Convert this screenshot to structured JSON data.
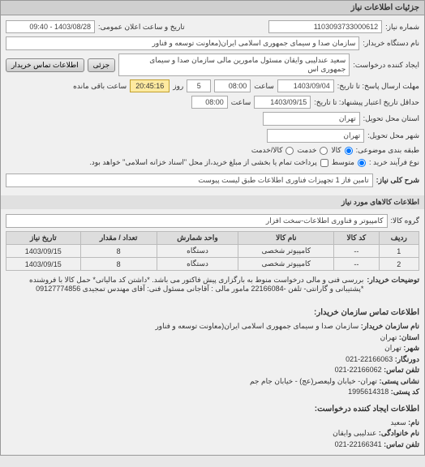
{
  "header": "جزئیات اطلاعات نیاز",
  "fields": {
    "requestNo_label": "شماره نیاز:",
    "requestNo": "1103093733000612",
    "announceDT_label": "تاریخ و ساعت اعلان عمومی:",
    "announceDT": "1403/08/28 - 09:40",
    "buyerDevice_label": "نام دستگاه خریدار:",
    "buyerDevice": "سازمان صدا و سیمای جمهوری اسلامی ایران(معاونت توسعه و فناور",
    "creator_label": "ایجاد کننده درخواست:",
    "creator": "سعید عندلیبی وایقان مسئول مامورین مالی  سازمان صدا و سیمای جمهوری اس",
    "partial_btn": "جزئی",
    "contactBuyer_btn": "اطلاعات تماس خریدار",
    "responseDeadline_label": "مهلت ارسال پاسخ: تا تاریخ:",
    "responseDate": "1403/09/04",
    "responseTime": "08:00",
    "countdownLabel": "روز",
    "countdownDays": "5",
    "countdownTime": "20:45:16",
    "remaining": "ساعت باقی مانده",
    "validityDeadline_label": "حداقل تاریخ اعتبار پیشنهاد: تا تاریخ:",
    "validityDate": "1403/09/15",
    "validityTime": "08:00",
    "province_label": "استان محل تحویل:",
    "province": "تهران",
    "city_label": "شهر محل تحویل:",
    "city": "تهران",
    "packaging_label": "طبقه بندی موضوعی:",
    "pkg_opt1": "کالا",
    "pkg_opt2": "خدمت",
    "pkg_opt3": "کالا/خدمت",
    "purchaseType_label": "نوع فرآیند خرید :",
    "pt_opt1": "متوسط",
    "pt_opt2": "پرداخت تمام یا بخشی از مبلغ خرید،از محل \"اسناد خزانه اسلامی\" خواهد بود.",
    "keyDesc_label": "شرح کلی نیاز:",
    "keyDesc": "تامین فاز 1 تجهیزات فناوری اطلاعات طبق لیست پیوست",
    "goodsInfo_header": "اطلاعات کالاهای مورد نیاز",
    "goodsGroup_label": "گروه کالا:",
    "goodsGroup": "کامپیوتر و فناوری اطلاعات-سخت افزار"
  },
  "table": {
    "headers": [
      "ردیف",
      "کد کالا",
      "نام کالا",
      "واحد شمارش",
      "تعداد / مقدار",
      "تاریخ نیاز"
    ],
    "rows": [
      [
        "1",
        "--",
        "کامپیوتر شخصی",
        "دستگاه",
        "8",
        "1403/09/15"
      ],
      [
        "2",
        "--",
        "کامپیوتر شخصی",
        "دستگاه",
        "8",
        "1403/09/15"
      ]
    ]
  },
  "buyerNotes": {
    "label": "توضیحات خریدار:",
    "text": "بررسی فنی و مالی درخواست منوط به بارگزاری پیش فاکتور می باشد. *داشتن کد مالیاتی* حمل کالا با فروشنده *پشتیبانی و گارانتی- تلفن -22166084 مامور مالی : آقاجانی مسئول فنی: آقای مهندس تمجیدی 09127774856"
  },
  "buyerContact": {
    "header": "اطلاعات تماس سازمان خریدار:",
    "orgName_label": "نام سازمان خریدار:",
    "orgName": "سازمان صدا و سیمای جمهوری اسلامی ایران(معاونت توسعه و فناور",
    "province_label": "استان:",
    "province": "تهران",
    "city_label": "شهر:",
    "city": "تهران",
    "fax_label": "دورنگار:",
    "fax": "22166063-021",
    "phone_label": "تلفن تماس:",
    "phone": "22166062-021",
    "postalAddr_label": "نشانی پستی:",
    "postalAddr": "تهران- خیابان ولیعصر(عج) - خیابان جام جم",
    "postalCode_label": "کد پستی:",
    "postalCode": "1995614318"
  },
  "creatorContact": {
    "header": "اطلاعات ایجاد کننده درخواست:",
    "firstName_label": "نام:",
    "firstName": "سعید",
    "lastName_label": "نام خانوادگی:",
    "lastName": "عندلیبی وایقان",
    "phone_label": "تلفن تماس:",
    "phone": "22166341-021"
  }
}
